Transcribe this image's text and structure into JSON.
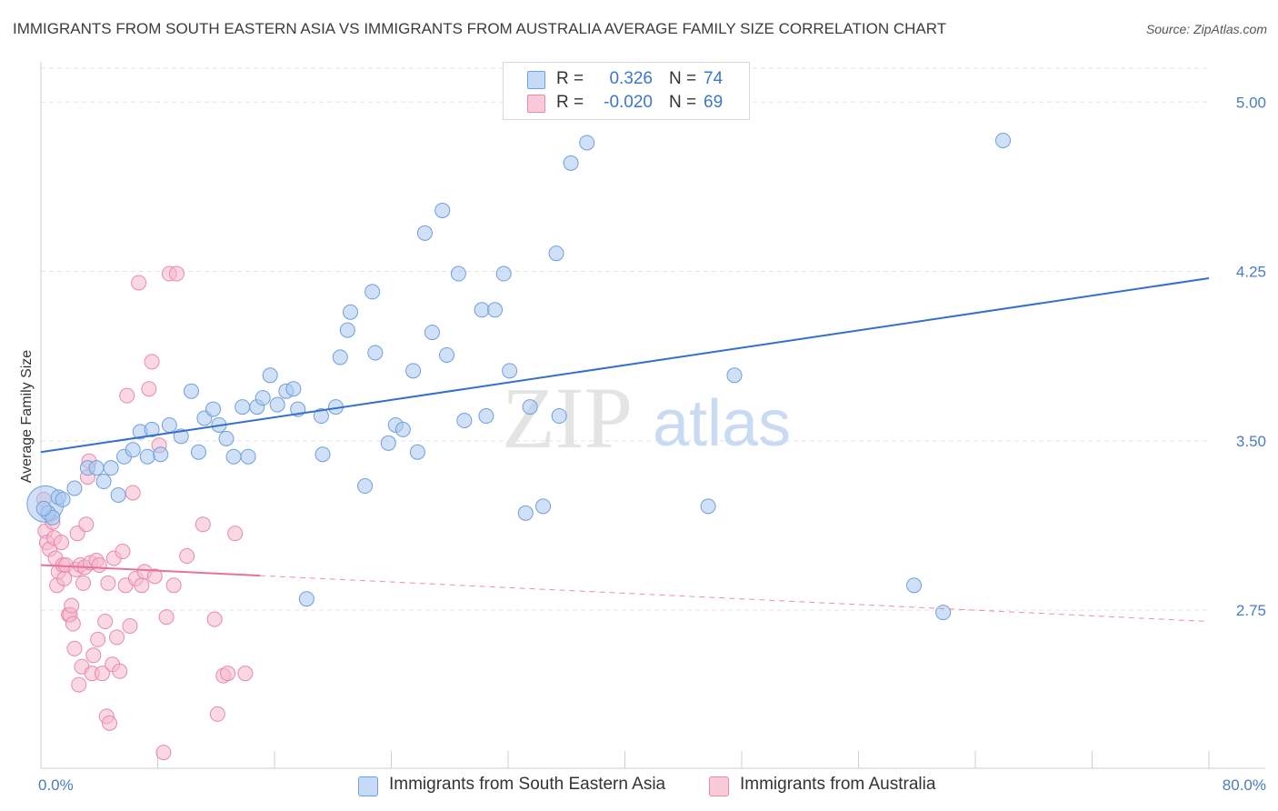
{
  "title": "IMMIGRANTS FROM SOUTH EASTERN ASIA VS IMMIGRANTS FROM AUSTRALIA AVERAGE FAMILY SIZE CORRELATION CHART",
  "source": "Source: ZipAtlas.com",
  "watermark": {
    "zip": "ZIP",
    "atlas": "atlas"
  },
  "colors": {
    "blue_fill": "#aac8f0",
    "blue_stroke": "#6f9fdc",
    "blue_line": "#3370cc",
    "pink_fill": "#f6b8cc",
    "pink_stroke": "#e98aa8",
    "pink_line": "#e4729a",
    "tick_text": "#4a7cc7",
    "grid": "#e3e3e3"
  },
  "legend": {
    "rows": [
      {
        "r_label": "R =",
        "r_value": "0.326",
        "n_label": "N =",
        "n_value": "74"
      },
      {
        "r_label": "R =",
        "r_value": "-0.020",
        "n_label": "N =",
        "n_value": "69"
      }
    ]
  },
  "bottom_legend": {
    "series1": "Immigrants from South Eastern Asia",
    "series2": "Immigrants from Australia"
  },
  "chart_data": {
    "type": "scatter",
    "title": "IMMIGRANTS FROM SOUTH EASTERN ASIA VS IMMIGRANTS FROM AUSTRALIA AVERAGE FAMILY SIZE CORRELATION CHART",
    "xlabel": "",
    "ylabel": "Average Family Size",
    "xlim": [
      0,
      80
    ],
    "ylim": [
      2.05,
      5.15
    ],
    "x_tick_labels": {
      "min": "0.0%",
      "max": "80.0%"
    },
    "y_ticks": [
      2.75,
      3.5,
      4.25,
      5.0
    ],
    "y_tick_labels": [
      "2.75",
      "3.50",
      "4.25",
      "5.00"
    ],
    "x_minor_ticks": [
      0,
      8,
      16,
      24,
      32,
      40,
      48,
      56,
      64,
      72,
      80
    ],
    "series": [
      {
        "name": "Immigrants from South Eastern Asia",
        "color": "blue",
        "r": 0.326,
        "n": 74,
        "trend": {
          "x0": 0,
          "y0": 3.45,
          "x1": 80,
          "y1": 4.22
        },
        "points": [
          [
            0.3,
            3.22
          ],
          [
            0.5,
            3.18
          ],
          [
            0.8,
            3.16
          ],
          [
            1.2,
            3.25
          ],
          [
            1.5,
            3.24
          ],
          [
            2.3,
            3.29
          ],
          [
            3.2,
            3.38
          ],
          [
            3.8,
            3.38
          ],
          [
            4.3,
            3.32
          ],
          [
            4.8,
            3.38
          ],
          [
            5.3,
            3.26
          ],
          [
            5.7,
            3.43
          ],
          [
            6.3,
            3.46
          ],
          [
            6.8,
            3.54
          ],
          [
            7.3,
            3.43
          ],
          [
            7.6,
            3.55
          ],
          [
            8.2,
            3.44
          ],
          [
            8.8,
            3.57
          ],
          [
            9.6,
            3.52
          ],
          [
            10.3,
            3.72
          ],
          [
            10.8,
            3.45
          ],
          [
            11.2,
            3.6
          ],
          [
            11.8,
            3.64
          ],
          [
            12.2,
            3.57
          ],
          [
            12.7,
            3.51
          ],
          [
            13.2,
            3.43
          ],
          [
            13.8,
            3.65
          ],
          [
            14.2,
            3.43
          ],
          [
            14.8,
            3.65
          ],
          [
            15.2,
            3.69
          ],
          [
            15.7,
            3.79
          ],
          [
            16.2,
            3.66
          ],
          [
            16.8,
            3.72
          ],
          [
            17.3,
            3.73
          ],
          [
            17.6,
            3.64
          ],
          [
            18.2,
            2.8
          ],
          [
            19.2,
            3.61
          ],
          [
            19.3,
            3.44
          ],
          [
            20.2,
            3.65
          ],
          [
            20.5,
            3.87
          ],
          [
            21.0,
            3.99
          ],
          [
            21.2,
            4.07
          ],
          [
            22.7,
            4.16
          ],
          [
            22.2,
            3.3
          ],
          [
            22.9,
            3.89
          ],
          [
            23.8,
            3.49
          ],
          [
            24.3,
            3.57
          ],
          [
            24.8,
            3.55
          ],
          [
            25.5,
            3.81
          ],
          [
            25.8,
            3.45
          ],
          [
            26.3,
            4.42
          ],
          [
            26.8,
            3.98
          ],
          [
            27.5,
            4.52
          ],
          [
            27.8,
            3.88
          ],
          [
            28.6,
            4.24
          ],
          [
            29.0,
            3.59
          ],
          [
            30.2,
            4.08
          ],
          [
            30.5,
            3.61
          ],
          [
            31.1,
            4.08
          ],
          [
            31.7,
            4.24
          ],
          [
            32.1,
            3.81
          ],
          [
            33.2,
            3.18
          ],
          [
            33.5,
            3.65
          ],
          [
            34.4,
            3.21
          ],
          [
            35.3,
            4.33
          ],
          [
            35.5,
            3.61
          ],
          [
            36.3,
            4.73
          ],
          [
            37.4,
            4.82
          ],
          [
            45.7,
            3.21
          ],
          [
            47.5,
            3.79
          ],
          [
            59.8,
            2.86
          ],
          [
            61.8,
            2.74
          ],
          [
            65.9,
            4.83
          ],
          [
            0.2,
            3.2
          ]
        ]
      },
      {
        "name": "Immigrants from Australia",
        "color": "pink",
        "r": -0.02,
        "n": 69,
        "trend": {
          "x0": 0,
          "y0": 2.95,
          "x1": 80,
          "y1": 2.7,
          "solid_until": 15
        },
        "points": [
          [
            0.2,
            3.24
          ],
          [
            0.3,
            3.1
          ],
          [
            0.4,
            3.05
          ],
          [
            0.6,
            3.02
          ],
          [
            0.8,
            3.14
          ],
          [
            0.9,
            3.07
          ],
          [
            1.0,
            2.98
          ],
          [
            1.1,
            2.86
          ],
          [
            1.2,
            2.92
          ],
          [
            1.4,
            3.05
          ],
          [
            1.5,
            2.95
          ],
          [
            1.6,
            2.89
          ],
          [
            1.7,
            2.95
          ],
          [
            1.9,
            2.73
          ],
          [
            2.0,
            2.73
          ],
          [
            2.1,
            2.77
          ],
          [
            2.2,
            2.69
          ],
          [
            2.3,
            2.58
          ],
          [
            2.4,
            2.93
          ],
          [
            2.5,
            3.09
          ],
          [
            2.6,
            2.42
          ],
          [
            2.7,
            2.95
          ],
          [
            2.8,
            2.5
          ],
          [
            2.9,
            2.87
          ],
          [
            3.0,
            2.94
          ],
          [
            3.1,
            3.13
          ],
          [
            3.2,
            3.34
          ],
          [
            3.3,
            3.41
          ],
          [
            3.4,
            2.96
          ],
          [
            3.5,
            2.47
          ],
          [
            3.6,
            2.55
          ],
          [
            3.8,
            2.97
          ],
          [
            3.9,
            2.62
          ],
          [
            4.0,
            2.95
          ],
          [
            4.2,
            2.47
          ],
          [
            4.4,
            2.7
          ],
          [
            4.5,
            2.28
          ],
          [
            4.6,
            2.87
          ],
          [
            4.7,
            2.25
          ],
          [
            4.9,
            2.51
          ],
          [
            5.0,
            2.98
          ],
          [
            5.2,
            2.63
          ],
          [
            5.4,
            2.48
          ],
          [
            5.6,
            3.01
          ],
          [
            5.8,
            2.86
          ],
          [
            5.9,
            3.7
          ],
          [
            6.1,
            2.68
          ],
          [
            6.3,
            3.27
          ],
          [
            6.5,
            2.89
          ],
          [
            6.7,
            4.2
          ],
          [
            6.9,
            2.86
          ],
          [
            7.1,
            2.92
          ],
          [
            7.4,
            3.73
          ],
          [
            7.6,
            3.85
          ],
          [
            7.8,
            2.9
          ],
          [
            8.1,
            3.48
          ],
          [
            8.4,
            2.12
          ],
          [
            8.6,
            2.72
          ],
          [
            8.8,
            4.24
          ],
          [
            9.1,
            2.86
          ],
          [
            9.3,
            4.24
          ],
          [
            10.0,
            2.99
          ],
          [
            11.1,
            3.13
          ],
          [
            11.9,
            2.71
          ],
          [
            12.1,
            2.29
          ],
          [
            12.5,
            2.46
          ],
          [
            12.8,
            2.47
          ],
          [
            13.3,
            3.09
          ],
          [
            14.0,
            2.47
          ]
        ]
      }
    ]
  }
}
